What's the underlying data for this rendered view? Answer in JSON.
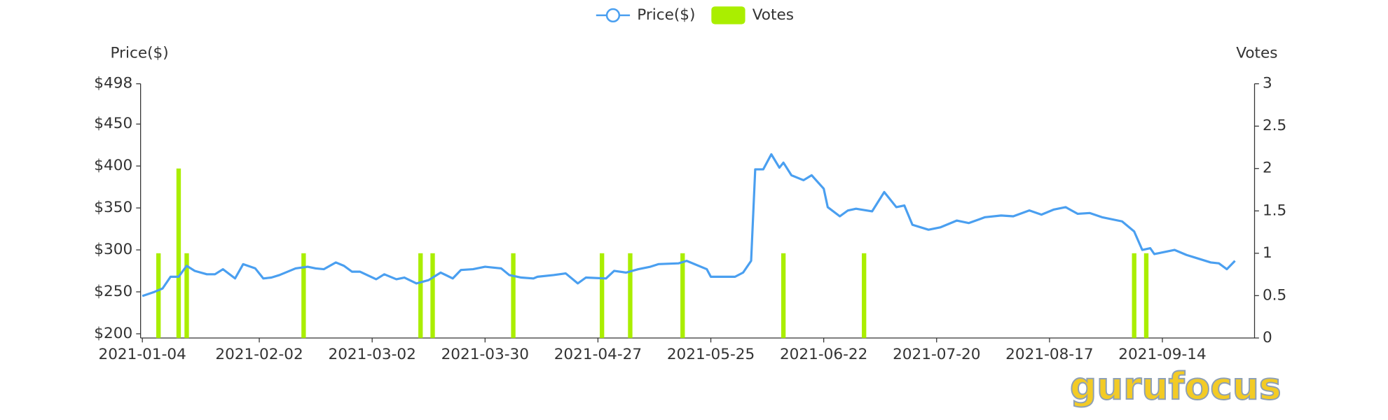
{
  "chart_data": {
    "type": "line",
    "ylabel": "Price($)",
    "y2label": "Votes",
    "watermark": "gurufocus",
    "xlim": [
      "2021-01-04",
      "2021-10-02"
    ],
    "xticks": [
      "2021-01-04",
      "2021-02-02",
      "2021-03-02",
      "2021-03-30",
      "2021-04-27",
      "2021-05-25",
      "2021-06-22",
      "2021-07-20",
      "2021-08-17",
      "2021-09-14"
    ],
    "ylim": [
      195,
      498
    ],
    "yticks": [
      {
        "value": 200,
        "label": "$200"
      },
      {
        "value": 250,
        "label": "$250"
      },
      {
        "value": 300,
        "label": "$300"
      },
      {
        "value": 350,
        "label": "$350"
      },
      {
        "value": 400,
        "label": "$400"
      },
      {
        "value": 450,
        "label": "$450"
      },
      {
        "value": 498,
        "label": "$498"
      }
    ],
    "y2lim": [
      0,
      3
    ],
    "y2ticks": [
      0,
      0.5,
      1,
      1.5,
      2,
      2.5,
      3
    ],
    "series": [
      {
        "name": "Price($)",
        "type": "line",
        "color": "#4a9ff0",
        "x": [
          "2021-01-04",
          "2021-01-07",
          "2021-01-09",
          "2021-01-11",
          "2021-01-13",
          "2021-01-15",
          "2021-01-17",
          "2021-01-20",
          "2021-01-22",
          "2021-01-24",
          "2021-01-27",
          "2021-01-29",
          "2021-02-01",
          "2021-02-03",
          "2021-02-05",
          "2021-02-07",
          "2021-02-11",
          "2021-02-14",
          "2021-02-16",
          "2021-02-18",
          "2021-02-21",
          "2021-02-23",
          "2021-02-25",
          "2021-02-27",
          "2021-03-03",
          "2021-03-05",
          "2021-03-08",
          "2021-03-10",
          "2021-03-13",
          "2021-03-16",
          "2021-03-19",
          "2021-03-22",
          "2021-03-24",
          "2021-03-27",
          "2021-03-30",
          "2021-04-03",
          "2021-04-05",
          "2021-04-08",
          "2021-04-11",
          "2021-04-12",
          "2021-04-16",
          "2021-04-19",
          "2021-04-22",
          "2021-04-24",
          "2021-04-29",
          "2021-05-01",
          "2021-05-04",
          "2021-05-07",
          "2021-05-10",
          "2021-05-12",
          "2021-05-17",
          "2021-05-19",
          "2021-05-24",
          "2021-05-25",
          "2021-05-31",
          "2021-06-02",
          "2021-06-04",
          "2021-06-05",
          "2021-06-07",
          "2021-06-09",
          "2021-06-11",
          "2021-06-12",
          "2021-06-14",
          "2021-06-17",
          "2021-06-19",
          "2021-06-22",
          "2021-06-23",
          "2021-06-26",
          "2021-06-28",
          "2021-06-30",
          "2021-07-04",
          "2021-07-07",
          "2021-07-10",
          "2021-07-12",
          "2021-07-14",
          "2021-07-18",
          "2021-07-21",
          "2021-07-25",
          "2021-07-28",
          "2021-08-01",
          "2021-08-05",
          "2021-08-08",
          "2021-08-12",
          "2021-08-15",
          "2021-08-18",
          "2021-08-21",
          "2021-08-24",
          "2021-08-27",
          "2021-08-30",
          "2021-09-04",
          "2021-09-07",
          "2021-09-09",
          "2021-09-11",
          "2021-09-12",
          "2021-09-17",
          "2021-09-20",
          "2021-09-22",
          "2021-09-26",
          "2021-09-28",
          "2021-09-30",
          "2021-10-02"
        ],
        "values": [
          245,
          250,
          254,
          268,
          268,
          281,
          275,
          271,
          271,
          277,
          266,
          283,
          278,
          266,
          267,
          270,
          278,
          280,
          278,
          277,
          285,
          281,
          274,
          274,
          265,
          271,
          265,
          267,
          260,
          264,
          273,
          266,
          276,
          277,
          280,
          278,
          270,
          267,
          266,
          268,
          270,
          272,
          260,
          267,
          266,
          275,
          273,
          277,
          280,
          283,
          284,
          287,
          277,
          268,
          268,
          273,
          287,
          396,
          396,
          414,
          398,
          404,
          389,
          383,
          389,
          373,
          351,
          340,
          347,
          349,
          346,
          369,
          351,
          353,
          330,
          324,
          327,
          335,
          332,
          339,
          341,
          340,
          347,
          342,
          348,
          351,
          343,
          344,
          339,
          334,
          322,
          300,
          302,
          295,
          300,
          294,
          291,
          285,
          284,
          277,
          287
        ]
      },
      {
        "name": "Votes",
        "type": "bar",
        "axis": "y2",
        "color": "#aaee00",
        "x": [
          "2021-01-08",
          "2021-01-13",
          "2021-01-15",
          "2021-02-13",
          "2021-03-14",
          "2021-03-17",
          "2021-04-06",
          "2021-04-28",
          "2021-05-05",
          "2021-05-18",
          "2021-06-12",
          "2021-07-02",
          "2021-09-07",
          "2021-09-10"
        ],
        "values": [
          1,
          2,
          1,
          1,
          1,
          1,
          1,
          1,
          1,
          1,
          1,
          1,
          1,
          1
        ]
      }
    ]
  }
}
